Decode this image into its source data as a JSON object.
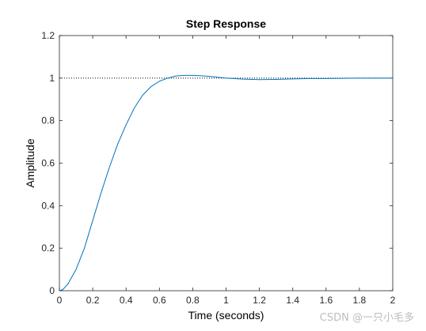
{
  "chart_data": {
    "type": "line",
    "title": "Step Response",
    "xlabel": "Time (seconds)",
    "ylabel": "Amplitude",
    "xlim": [
      0,
      2
    ],
    "ylim": [
      0,
      1.2
    ],
    "xticks": [
      0,
      0.2,
      0.4,
      0.6,
      0.8,
      1,
      1.2,
      1.4,
      1.6,
      1.8,
      2
    ],
    "yticks": [
      0,
      0.2,
      0.4,
      0.6,
      0.8,
      1,
      1.2
    ],
    "xtick_labels": [
      "0",
      "0.2",
      "0.4",
      "0.6",
      "0.8",
      "1",
      "1.2",
      "1.4",
      "1.6",
      "1.8",
      "2"
    ],
    "ytick_labels": [
      "0",
      "0.2",
      "0.4",
      "0.6",
      "0.8",
      "1",
      "1.2"
    ],
    "grid": false,
    "reference_line": {
      "y": 1,
      "style": "dotted"
    },
    "series": [
      {
        "color": "#0072bd",
        "x": [
          0,
          0.02,
          0.05,
          0.1,
          0.15,
          0.2,
          0.25,
          0.3,
          0.35,
          0.4,
          0.45,
          0.5,
          0.55,
          0.6,
          0.65,
          0.7,
          0.75,
          0.8,
          0.85,
          0.9,
          0.95,
          1.0,
          1.1,
          1.2,
          1.3,
          1.4,
          1.5,
          1.6,
          1.7,
          1.8,
          1.9,
          2.0
        ],
        "y": [
          0,
          0.005,
          0.03,
          0.1,
          0.2,
          0.33,
          0.46,
          0.58,
          0.69,
          0.78,
          0.86,
          0.92,
          0.96,
          0.985,
          1.0,
          1.01,
          1.013,
          1.013,
          1.011,
          1.008,
          1.004,
          1.0,
          0.995,
          0.993,
          0.994,
          0.996,
          0.998,
          0.998,
          0.999,
          1.0,
          1.0,
          1.0
        ]
      }
    ]
  },
  "watermark": {
    "text": "CSDN @一只小毛多"
  }
}
